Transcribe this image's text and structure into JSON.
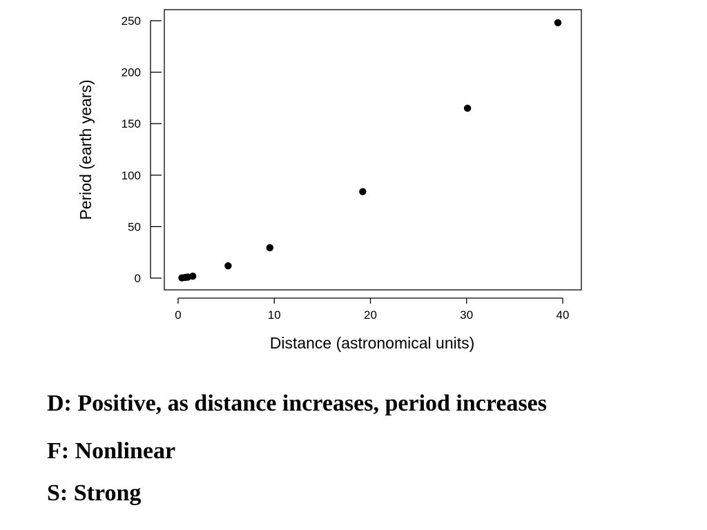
{
  "chart_data": {
    "type": "scatter",
    "xlabel": "Distance (astronomical units)",
    "ylabel": "Period (earth years)",
    "xlim": [
      0,
      40
    ],
    "ylim": [
      0,
      250
    ],
    "xticks": [
      "0",
      "10",
      "20",
      "30",
      "40"
    ],
    "yticks": [
      "0",
      "50",
      "100",
      "150",
      "200",
      "250"
    ],
    "grid": false,
    "legend": "none",
    "marker_color": "#000000",
    "series": [
      {
        "x": [
          0.39,
          0.72,
          1.0,
          1.52,
          5.2,
          9.54,
          19.2,
          30.1,
          39.5
        ],
        "y": [
          0.24,
          0.62,
          1.0,
          1.88,
          11.9,
          29.5,
          84.0,
          165.0,
          248.0
        ]
      }
    ]
  },
  "captions": {
    "direction": "D:  Positive, as distance increases, period increases",
    "form": "F:  Nonlinear",
    "strength": "S:  Strong"
  }
}
